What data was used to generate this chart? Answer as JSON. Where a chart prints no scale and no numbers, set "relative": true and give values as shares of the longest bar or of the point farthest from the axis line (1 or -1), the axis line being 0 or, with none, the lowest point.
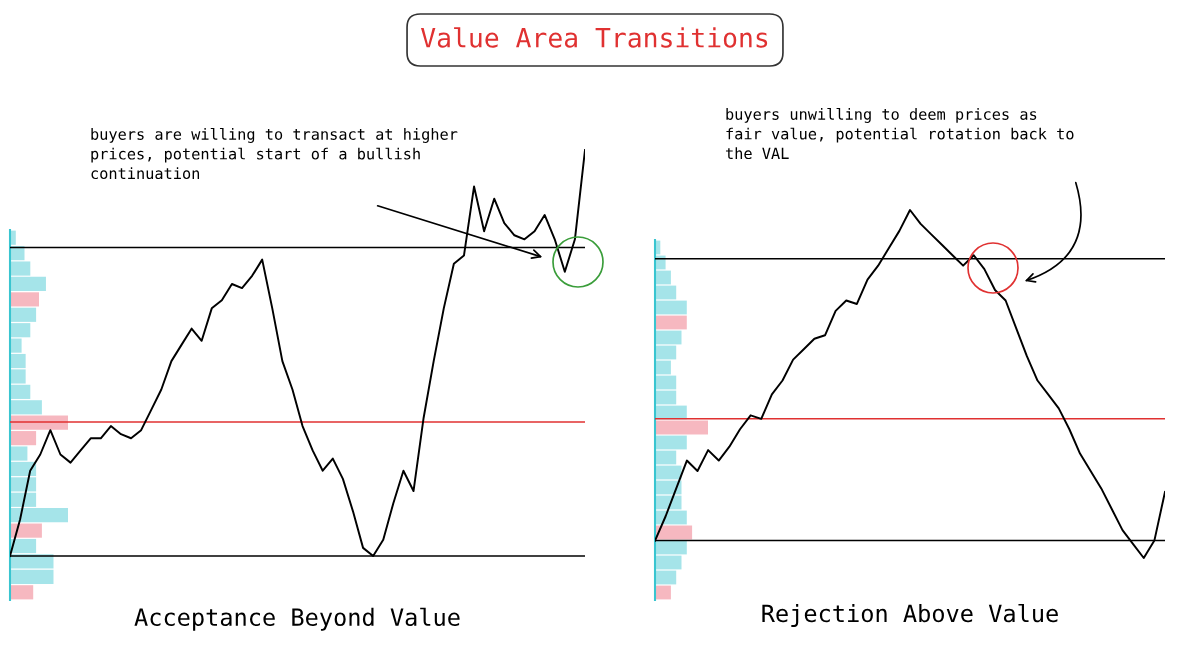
{
  "chart_data": [
    {
      "type": "line",
      "relative": true,
      "title": "Value Area Transitions",
      "xlabel": "Acceptance Beyond Value",
      "categories": [
        null,
        null,
        null,
        null,
        null,
        null,
        null,
        null,
        null,
        null,
        null,
        null,
        null,
        null,
        null,
        null,
        null,
        null,
        null,
        null,
        null,
        null,
        null,
        null,
        null,
        null,
        null,
        null,
        null,
        null,
        null,
        null,
        null,
        null,
        null,
        null,
        null,
        null,
        null,
        null,
        null,
        null,
        null,
        null,
        null,
        null,
        null,
        null,
        null,
        null,
        null,
        null,
        null,
        null,
        null,
        null,
        null,
        null
      ],
      "series": [
        {
          "color": "#000000",
          "values": [
            0,
            0.09,
            0.21,
            0.25,
            0.31,
            0.25,
            0.23,
            0.26,
            0.29,
            0.29,
            0.32,
            0.3,
            0.29,
            0.31,
            0.36,
            0.41,
            0.48,
            0.52,
            0.56,
            0.53,
            0.61,
            0.63,
            0.67,
            0.66,
            0.69,
            0.73,
            0.61,
            0.48,
            0.41,
            0.32,
            0.26,
            0.21,
            0.24,
            0.19,
            0.11,
            0.02,
            0,
            0.04,
            0.13,
            0.21,
            0.16,
            0.34,
            0.48,
            0.61,
            0.72,
            0.74,
            0.91,
            0.8,
            0.88,
            0.82,
            0.79,
            0.78,
            0.8,
            0.84,
            0.78,
            0.7,
            0.78,
            1
          ]
        }
      ],
      "ref_lines": [
        {
          "axis": "y",
          "value": 0.76,
          "color": "#000000"
        },
        {
          "axis": "y",
          "value": 0.33,
          "color": "#e03131"
        },
        {
          "axis": "y",
          "value": 0,
          "color": "#000000"
        }
      ],
      "annotations": [
        "buyers are willing to transact at higher\nprices, potential start of a bullish\ncontinuation"
      ]
    },
    {
      "type": "bar",
      "orientation": "horizontal",
      "relative": true,
      "categories": [
        null,
        null,
        null,
        null,
        null,
        null,
        null,
        null,
        null,
        null,
        null,
        null,
        null,
        null,
        null,
        null,
        null,
        null,
        null,
        null,
        null,
        null,
        null,
        null
      ],
      "values": [
        0.1,
        0.25,
        0.35,
        0.62,
        0.5,
        0.45,
        0.35,
        0.2,
        0.27,
        0.27,
        0.35,
        0.55,
        1,
        0.45,
        0.3,
        0.45,
        0.45,
        0.45,
        1,
        0.55,
        0.45,
        0.75,
        0.75,
        0.4
      ],
      "colors": [
        "#8fdde3",
        "#8fdde3",
        "#8fdde3",
        "#8fdde3",
        "#f4a6b0",
        "#8fdde3",
        "#8fdde3",
        "#8fdde3",
        "#8fdde3",
        "#8fdde3",
        "#8fdde3",
        "#8fdde3",
        "#f4a6b0",
        "#f4a6b0",
        "#8fdde3",
        "#8fdde3",
        "#8fdde3",
        "#8fdde3",
        "#8fdde3",
        "#f4a6b0",
        "#8fdde3",
        "#8fdde3",
        "#8fdde3",
        "#f4a6b0"
      ]
    },
    {
      "type": "line",
      "relative": true,
      "xlabel": "Rejection Above Value",
      "categories": [
        null,
        null,
        null,
        null,
        null,
        null,
        null,
        null,
        null,
        null,
        null,
        null,
        null,
        null,
        null,
        null,
        null,
        null,
        null,
        null,
        null,
        null,
        null,
        null,
        null,
        null,
        null,
        null,
        null,
        null,
        null,
        null,
        null,
        null,
        null,
        null,
        null,
        null,
        null,
        null,
        null,
        null,
        null,
        null,
        null,
        null,
        null,
        null,
        null
      ],
      "series": [
        {
          "color": "#000000",
          "values": [
            0.05,
            0.12,
            0.2,
            0.28,
            0.25,
            0.31,
            0.28,
            0.32,
            0.37,
            0.41,
            0.4,
            0.47,
            0.51,
            0.57,
            0.6,
            0.63,
            0.64,
            0.71,
            0.74,
            0.73,
            0.8,
            0.84,
            0.89,
            0.94,
            1,
            0.96,
            0.93,
            0.9,
            0.87,
            0.84,
            0.87,
            0.83,
            0.77,
            0.74,
            0.66,
            0.58,
            0.51,
            0.47,
            0.43,
            0.37,
            0.3,
            0.25,
            0.2,
            0.14,
            0.08,
            0.04,
            0,
            0.05,
            0.19
          ]
        }
      ],
      "ref_lines": [
        {
          "axis": "y",
          "value": 0.86,
          "color": "#000000"
        },
        {
          "axis": "y",
          "value": 0.4,
          "color": "#e03131"
        },
        {
          "axis": "y",
          "value": 0.05,
          "color": "#000000"
        }
      ],
      "annotations": [
        "buyers unwilling to deem prices as\nfair value, potential rotation back to\nthe VAL"
      ]
    },
    {
      "type": "bar",
      "orientation": "horizontal",
      "relative": true,
      "categories": [
        null,
        null,
        null,
        null,
        null,
        null,
        null,
        null,
        null,
        null,
        null,
        null,
        null,
        null,
        null,
        null,
        null,
        null,
        null,
        null,
        null,
        null,
        null,
        null
      ],
      "values": [
        0.1,
        0.2,
        0.3,
        0.4,
        0.6,
        0.6,
        0.5,
        0.4,
        0.3,
        0.4,
        0.4,
        0.6,
        1,
        0.6,
        0.4,
        0.5,
        0.5,
        0.5,
        0.6,
        0.7,
        0.6,
        0.5,
        0.4,
        0.3
      ],
      "colors": [
        "#8fdde3",
        "#8fdde3",
        "#8fdde3",
        "#8fdde3",
        "#8fdde3",
        "#f4a6b0",
        "#8fdde3",
        "#8fdde3",
        "#8fdde3",
        "#8fdde3",
        "#8fdde3",
        "#8fdde3",
        "#f4a6b0",
        "#8fdde3",
        "#8fdde3",
        "#8fdde3",
        "#8fdde3",
        "#8fdde3",
        "#8fdde3",
        "#f4a6b0",
        "#8fdde3",
        "#8fdde3",
        "#8fdde3",
        "#f4a6b0"
      ]
    }
  ]
}
